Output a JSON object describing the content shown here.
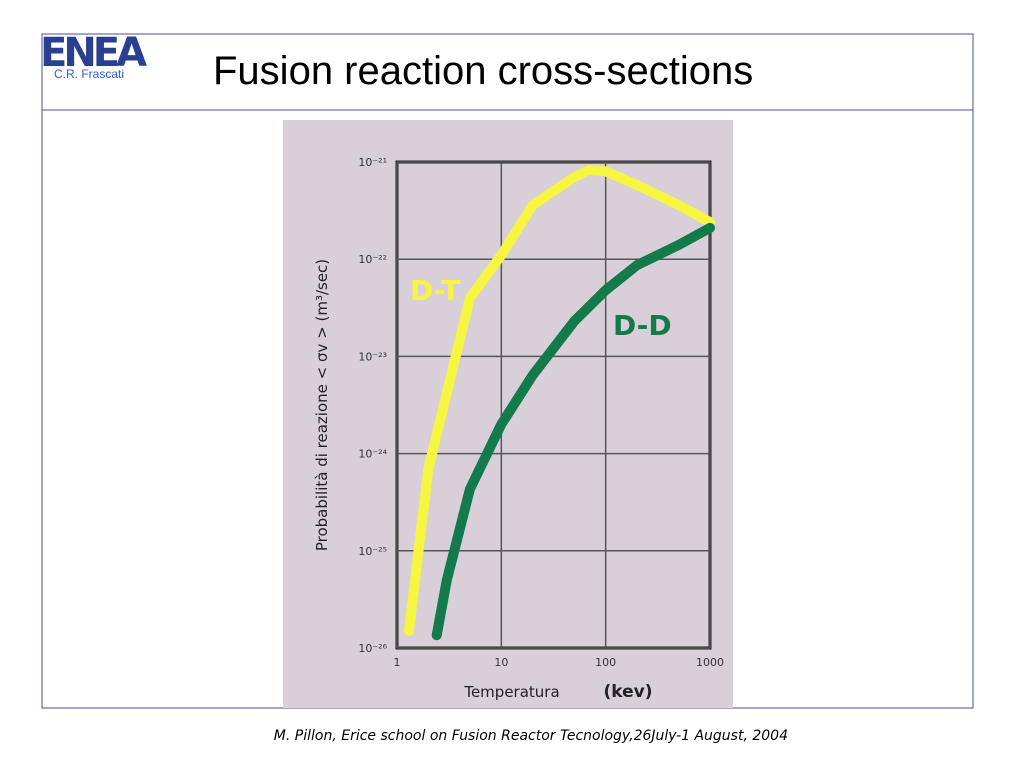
{
  "header": {
    "logo": "ENEA",
    "logo_subtitle": "C.R. Frascati",
    "title": "Fusion reaction cross-sections"
  },
  "footer": "M. Pillon, Erice school on Fusion Reactor Tecnology,26July-1 August, 2004",
  "chart_data": {
    "type": "line",
    "xlabel": "Temperatura",
    "xlabel_unit": "(kev)",
    "ylabel": "Probabilità di reazione < σv > (m³/sec)",
    "xscale": "log",
    "yscale": "log",
    "grid": true,
    "xlim": [
      1,
      1000
    ],
    "ylim": [
      1e-26,
      1e-21
    ],
    "xticks": [
      1,
      10,
      100,
      1000
    ],
    "yticks": [
      {
        "value": 1e-26,
        "label": "10⁻²⁶"
      },
      {
        "value": 1e-25,
        "label": "10⁻²⁵"
      },
      {
        "value": 1e-24,
        "label": "10⁻²⁴"
      },
      {
        "value": 1e-23,
        "label": "10⁻²³"
      },
      {
        "value": 1e-22,
        "label": "10⁻²²"
      },
      {
        "value": 1e-21,
        "label": "10⁻²¹"
      }
    ],
    "series": [
      {
        "name": "D-T",
        "color": "#f5f542",
        "x": [
          1.3,
          2,
          5,
          10,
          20,
          50,
          70,
          100,
          200,
          500,
          1000
        ],
        "values": [
          1.5e-26,
          7e-25,
          4e-23,
          1.1e-22,
          3.6e-22,
          7e-22,
          8.3e-22,
          8e-22,
          5.8e-22,
          3.6e-22,
          2.4e-22
        ]
      },
      {
        "name": "D-D",
        "color": "#137a4c",
        "x": [
          2.4,
          3,
          5,
          10,
          20,
          50,
          100,
          200,
          500,
          1000
        ],
        "values": [
          1.35e-26,
          5e-26,
          4.3e-25,
          2e-24,
          6.4e-24,
          2.3e-23,
          4.8e-23,
          8.7e-23,
          1.4e-22,
          2.1e-22
        ]
      }
    ]
  }
}
